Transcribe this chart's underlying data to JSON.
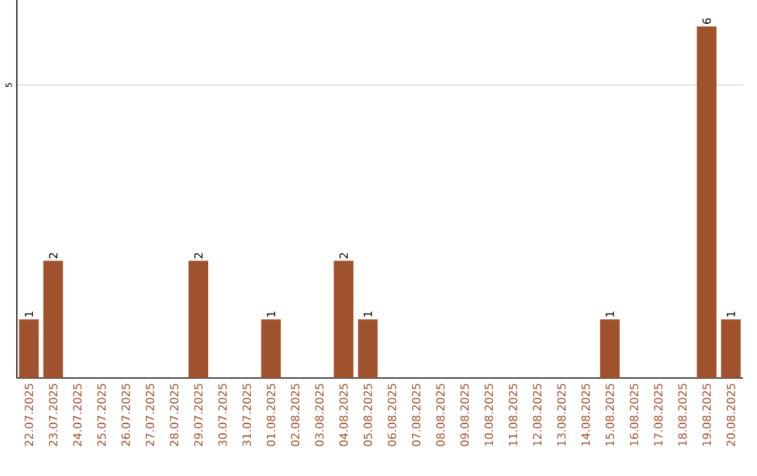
{
  "chart_data": {
    "type": "bar",
    "color": "#a0522d",
    "categories": [
      "22.07.2025",
      "23.07.2025",
      "24.07.2025",
      "25.07.2025",
      "26.07.2025",
      "27.07.2025",
      "28.07.2025",
      "29.07.2025",
      "30.07.2025",
      "31.07.2025",
      "01.08.2025",
      "02.08.2025",
      "03.08.2025",
      "04.08.2025",
      "05.08.2025",
      "06.08.2025",
      "07.08.2025",
      "08.08.2025",
      "09.08.2025",
      "10.08.2025",
      "11.08.2025",
      "12.08.2025",
      "13.08.2025",
      "14.08.2025",
      "15.08.2025",
      "16.08.2025",
      "17.08.2025",
      "18.08.2025",
      "19.08.2025",
      "20.08.2025"
    ],
    "values": [
      1,
      2,
      0,
      0,
      0,
      0,
      0,
      2,
      0,
      0,
      1,
      0,
      0,
      2,
      1,
      0,
      0,
      0,
      0,
      0,
      0,
      0,
      0,
      0,
      1,
      0,
      0,
      0,
      6,
      1
    ],
    "value_labels": [
      "1",
      "2",
      null,
      null,
      null,
      null,
      null,
      "2",
      null,
      null,
      "1",
      null,
      null,
      "2",
      "1",
      null,
      null,
      null,
      null,
      null,
      null,
      null,
      null,
      null,
      "1",
      null,
      null,
      null,
      "6",
      "1"
    ],
    "ylim": [
      0,
      6.45
    ],
    "yticks": [
      5
    ],
    "grid": "y"
  }
}
